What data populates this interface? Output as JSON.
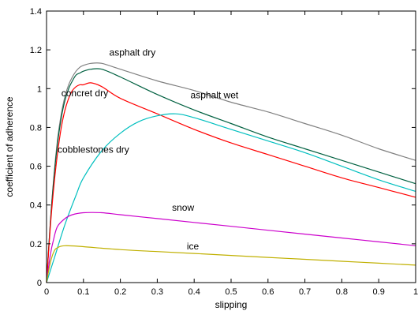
{
  "chart_data": {
    "type": "line",
    "xlabel": "slipping",
    "ylabel": "coefficient of adherence",
    "xlim": [
      0,
      1
    ],
    "ylim": [
      0,
      1.4
    ],
    "xticks": [
      0,
      0.1,
      0.2,
      0.3,
      0.4,
      0.5,
      0.6,
      0.7,
      0.8,
      0.9,
      1
    ],
    "yticks": [
      0,
      0.2,
      0.4,
      0.6,
      0.8,
      1,
      1.2,
      1.4
    ],
    "grid": false,
    "legend": "none",
    "series": [
      {
        "name": "asphalt dry",
        "color": "#808080",
        "points": [
          [
            0,
            0
          ],
          [
            0.01,
            0.3
          ],
          [
            0.02,
            0.55
          ],
          [
            0.03,
            0.74
          ],
          [
            0.04,
            0.87
          ],
          [
            0.05,
            0.96
          ],
          [
            0.06,
            1.02
          ],
          [
            0.07,
            1.06
          ],
          [
            0.08,
            1.09
          ],
          [
            0.09,
            1.11
          ],
          [
            0.1,
            1.12
          ],
          [
            0.12,
            1.13
          ],
          [
            0.15,
            1.13
          ],
          [
            0.2,
            1.1
          ],
          [
            0.3,
            1.04
          ],
          [
            0.4,
            0.99
          ],
          [
            0.5,
            0.93
          ],
          [
            0.6,
            0.88
          ],
          [
            0.7,
            0.82
          ],
          [
            0.8,
            0.76
          ],
          [
            0.9,
            0.69
          ],
          [
            1,
            0.63
          ]
        ]
      },
      {
        "name": "asphalt wet",
        "color": "#006040",
        "points": [
          [
            0,
            0
          ],
          [
            0.01,
            0.3
          ],
          [
            0.02,
            0.54
          ],
          [
            0.03,
            0.72
          ],
          [
            0.04,
            0.85
          ],
          [
            0.05,
            0.94
          ],
          [
            0.06,
            1.0
          ],
          [
            0.07,
            1.04
          ],
          [
            0.08,
            1.07
          ],
          [
            0.09,
            1.08
          ],
          [
            0.1,
            1.09
          ],
          [
            0.12,
            1.1
          ],
          [
            0.15,
            1.1
          ],
          [
            0.2,
            1.06
          ],
          [
            0.3,
            0.97
          ],
          [
            0.4,
            0.89
          ],
          [
            0.5,
            0.82
          ],
          [
            0.6,
            0.75
          ],
          [
            0.7,
            0.69
          ],
          [
            0.8,
            0.63
          ],
          [
            0.9,
            0.57
          ],
          [
            1,
            0.51
          ]
        ]
      },
      {
        "name": "concret dry",
        "color": "#ff0000",
        "points": [
          [
            0,
            0
          ],
          [
            0.01,
            0.28
          ],
          [
            0.02,
            0.5
          ],
          [
            0.03,
            0.67
          ],
          [
            0.04,
            0.8
          ],
          [
            0.05,
            0.89
          ],
          [
            0.06,
            0.95
          ],
          [
            0.07,
            0.99
          ],
          [
            0.08,
            1.01
          ],
          [
            0.09,
            1.02
          ],
          [
            0.1,
            1.02
          ],
          [
            0.12,
            1.03
          ],
          [
            0.15,
            1.01
          ],
          [
            0.2,
            0.95
          ],
          [
            0.3,
            0.87
          ],
          [
            0.4,
            0.79
          ],
          [
            0.5,
            0.72
          ],
          [
            0.6,
            0.66
          ],
          [
            0.7,
            0.6
          ],
          [
            0.8,
            0.54
          ],
          [
            0.9,
            0.49
          ],
          [
            1,
            0.44
          ]
        ]
      },
      {
        "name": "cobblestones dry",
        "color": "#00bfbf",
        "points": [
          [
            0,
            0
          ],
          [
            0.02,
            0.12
          ],
          [
            0.05,
            0.3
          ],
          [
            0.08,
            0.45
          ],
          [
            0.1,
            0.54
          ],
          [
            0.15,
            0.68
          ],
          [
            0.2,
            0.77
          ],
          [
            0.25,
            0.83
          ],
          [
            0.3,
            0.86
          ],
          [
            0.35,
            0.87
          ],
          [
            0.4,
            0.85
          ],
          [
            0.5,
            0.79
          ],
          [
            0.6,
            0.73
          ],
          [
            0.7,
            0.67
          ],
          [
            0.8,
            0.6
          ],
          [
            0.9,
            0.53
          ],
          [
            1,
            0.47
          ]
        ]
      },
      {
        "name": "snow",
        "color": "#cc00cc",
        "points": [
          [
            0,
            0
          ],
          [
            0.01,
            0.14
          ],
          [
            0.02,
            0.23
          ],
          [
            0.03,
            0.29
          ],
          [
            0.05,
            0.33
          ],
          [
            0.07,
            0.35
          ],
          [
            0.1,
            0.36
          ],
          [
            0.15,
            0.36
          ],
          [
            0.2,
            0.35
          ],
          [
            0.3,
            0.33
          ],
          [
            0.4,
            0.31
          ],
          [
            0.5,
            0.29
          ],
          [
            0.6,
            0.27
          ],
          [
            0.7,
            0.25
          ],
          [
            0.8,
            0.23
          ],
          [
            0.9,
            0.21
          ],
          [
            1,
            0.19
          ]
        ]
      },
      {
        "name": "ice",
        "color": "#c0b000",
        "points": [
          [
            0,
            0
          ],
          [
            0.01,
            0.1
          ],
          [
            0.02,
            0.16
          ],
          [
            0.03,
            0.18
          ],
          [
            0.05,
            0.19
          ],
          [
            0.1,
            0.185
          ],
          [
            0.2,
            0.17
          ],
          [
            0.3,
            0.16
          ],
          [
            0.4,
            0.15
          ],
          [
            0.5,
            0.14
          ],
          [
            0.6,
            0.13
          ],
          [
            0.7,
            0.12
          ],
          [
            0.8,
            0.11
          ],
          [
            0.9,
            0.1
          ],
          [
            1,
            0.09
          ]
        ]
      }
    ],
    "annotations": [
      {
        "text": "asphalt dry",
        "x": 0.17,
        "y": 1.17
      },
      {
        "text": "concret dry",
        "x": 0.04,
        "y": 0.96
      },
      {
        "text": "asphalt wet",
        "x": 0.39,
        "y": 0.95
      },
      {
        "text": "cobblestones dry",
        "x": 0.03,
        "y": 0.67
      },
      {
        "text": "snow",
        "x": 0.34,
        "y": 0.37
      },
      {
        "text": "ice",
        "x": 0.38,
        "y": 0.17
      }
    ]
  }
}
